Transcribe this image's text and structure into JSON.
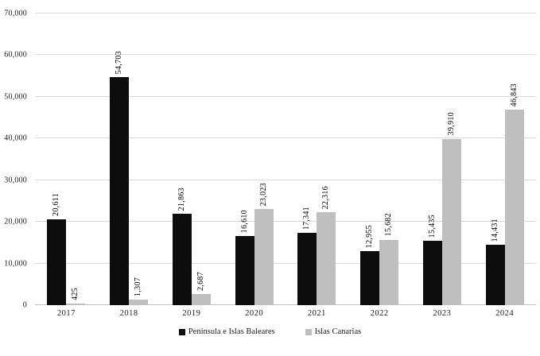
{
  "chart_data": {
    "type": "bar",
    "title": "",
    "xlabel": "",
    "ylabel": "",
    "grid": true,
    "legend_position": "bottom",
    "categories": [
      "2017",
      "2018",
      "2019",
      "2020",
      "2021",
      "2022",
      "2023",
      "2024"
    ],
    "series": [
      {
        "name": "Península e Islas Baleares",
        "color": "#0d0d0d",
        "values": [
          20611,
          54703,
          21863,
          16610,
          17341,
          12955,
          15435,
          14431
        ],
        "labels": [
          "20,611",
          "54,703",
          "21,863",
          "16,610",
          "17,341",
          "12,955",
          "15,435",
          "14,431"
        ]
      },
      {
        "name": "Islas Canarias",
        "color": "#bfbfbf",
        "values": [
          425,
          1307,
          2687,
          23023,
          22316,
          15682,
          39910,
          46843
        ],
        "labels": [
          "425",
          "1,307",
          "2,687",
          "23,023",
          "22,316",
          "15,682",
          "39,910",
          "46,843"
        ]
      }
    ],
    "ylim": [
      0,
      70000
    ],
    "ytick_step": 10000,
    "yticks": [
      0,
      10000,
      20000,
      30000,
      40000,
      50000,
      60000,
      70000
    ],
    "ytick_labels": [
      "0",
      "10,000",
      "20,000",
      "30,000",
      "40,000",
      "50,000",
      "60,000",
      "70,000"
    ],
    "colors": {
      "grid": "#d9d9d9",
      "axis_line": "#bfbfbf",
      "label_text": "#000000"
    }
  }
}
